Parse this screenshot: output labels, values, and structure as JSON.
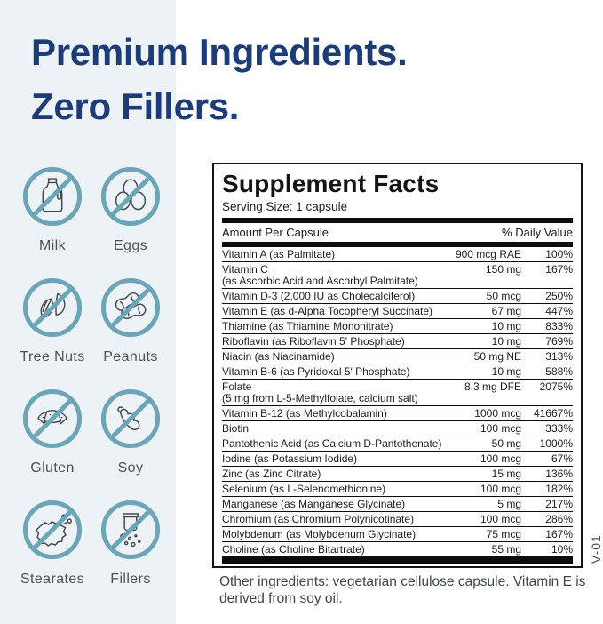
{
  "heading": {
    "line1": "Premium Ingredients.",
    "line2": "Zero Fillers."
  },
  "allergens": {
    "items": [
      {
        "label": "Milk",
        "icon": "milk-icon"
      },
      {
        "label": "Eggs",
        "icon": "eggs-icon"
      },
      {
        "label": "Tree Nuts",
        "icon": "tree-nuts-icon"
      },
      {
        "label": "Peanuts",
        "icon": "peanuts-icon"
      },
      {
        "label": "Gluten",
        "icon": "gluten-icon"
      },
      {
        "label": "Soy",
        "icon": "soy-icon"
      },
      {
        "label": "Stearates",
        "icon": "stearates-icon"
      },
      {
        "label": "Fillers",
        "icon": "fillers-icon"
      }
    ]
  },
  "supplement_facts": {
    "title": "Supplement Facts",
    "serving_size": "Serving Size: 1 capsule",
    "amount_header": "Amount Per Capsule",
    "dv_header": "% Daily Value",
    "rows": [
      {
        "name": "Vitamin A (as Palmitate)",
        "amount": "900 mcg RAE",
        "dv": "100%"
      },
      {
        "name": "Vitamin C",
        "name2": "(as Ascorbic Acid and Ascorbyl Palmitate)",
        "amount": "150 mg",
        "dv": "167%"
      },
      {
        "name": "Vitamin D-3 (2,000 IU as Cholecalciferol)",
        "amount": "50 mcg",
        "dv": "250%"
      },
      {
        "name": "Vitamin E (as d-Alpha Tocopheryl Succinate)",
        "amount": "67 mg",
        "dv": "447%"
      },
      {
        "name": "Thiamine (as Thiamine Mononitrate)",
        "amount": "10 mg",
        "dv": "833%"
      },
      {
        "name": "Riboflavin (as Riboflavin 5′ Phosphate)",
        "amount": "10 mg",
        "dv": "769%"
      },
      {
        "name": "Niacin (as Niacinamide)",
        "amount": "50 mg NE",
        "dv": "313%"
      },
      {
        "name": "Vitamin B-6 (as Pyridoxal 5′ Phosphate)",
        "amount": "10 mg",
        "dv": "588%"
      },
      {
        "name": "Folate",
        "name2": "(5 mg from L-5-Methylfolate, calcium salt)",
        "amount": "8.3 mg DFE",
        "dv": "2075%"
      },
      {
        "name": "Vitamin B-12 (as Methylcobalamin)",
        "amount": "1000 mcg",
        "dv": "41667%"
      },
      {
        "name": "Biotin",
        "amount": "100 mcg",
        "dv": "333%"
      },
      {
        "name": "Pantothenic Acid (as Calcium D-Pantothenate)",
        "amount": "50 mg",
        "dv": "1000%"
      },
      {
        "name": "Iodine (as Potassium Iodide)",
        "amount": "100 mcg",
        "dv": "67%"
      },
      {
        "name": "Zinc (as Zinc Citrate)",
        "amount": "15 mg",
        "dv": "136%"
      },
      {
        "name": "Selenium (as L-Selenomethionine)",
        "amount": "100 mcg",
        "dv": "182%"
      },
      {
        "name": "Manganese (as Manganese Glycinate)",
        "amount": "5 mg",
        "dv": "217%"
      },
      {
        "name": "Chromium (as Chromium Polynicotinate)",
        "amount": "100 mcg",
        "dv": "286%"
      },
      {
        "name": "Molybdenum (as Molybdenum Glycinate)",
        "amount": "75 mcg",
        "dv": "167%"
      },
      {
        "name": "Choline (as Choline Bitartrate)",
        "amount": "55 mg",
        "dv": "10%"
      }
    ],
    "other_ingredients": "Other ingredients: vegetarian cellulose capsule. Vitamin E is derived from soy oil."
  },
  "side_label": "V-01",
  "colors": {
    "heading_navy": "#1d3c77",
    "icon_teal": "#6ca4b8",
    "icon_line": "#45494c",
    "label_gray": "#4c5156",
    "panel_bg": "#edf2f6",
    "table_black": "#141414",
    "text_gray": "#3f4449"
  }
}
